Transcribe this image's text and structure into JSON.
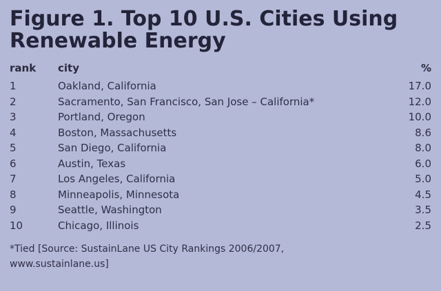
{
  "chart_data": {
    "type": "table",
    "title": "Figure 1. Top 10 U.S. Cities Using Renewable Energy",
    "columns": [
      "rank",
      "city",
      "%"
    ],
    "rows": [
      {
        "rank": "1",
        "city": "Oakland, California",
        "value": "17.0"
      },
      {
        "rank": "2",
        "city": "Sacramento, San Francisco, San Jose – California*",
        "value": "12.0"
      },
      {
        "rank": "3",
        "city": "Portland, Oregon",
        "value": "10.0"
      },
      {
        "rank": "4",
        "city": "Boston, Massachusetts",
        "value": "8.6"
      },
      {
        "rank": "5",
        "city": "San Diego, California",
        "value": "8.0"
      },
      {
        "rank": "6",
        "city": "Austin, Texas",
        "value": "6.0"
      },
      {
        "rank": "7",
        "city": "Los Angeles, California",
        "value": "5.0"
      },
      {
        "rank": "8",
        "city": "Minneapolis, Minnesota",
        "value": "4.5"
      },
      {
        "rank": "9",
        "city": "Seattle, Washington",
        "value": "3.5"
      },
      {
        "rank": "10",
        "city": "Chicago, Illinois",
        "value": "2.5"
      }
    ],
    "footnote": "*Tied [Source: SustainLane US City Rankings 2006/2007, www.sustainlane.us]"
  },
  "colors": {
    "background": "#b5b9d8",
    "text": "#2f3046"
  }
}
